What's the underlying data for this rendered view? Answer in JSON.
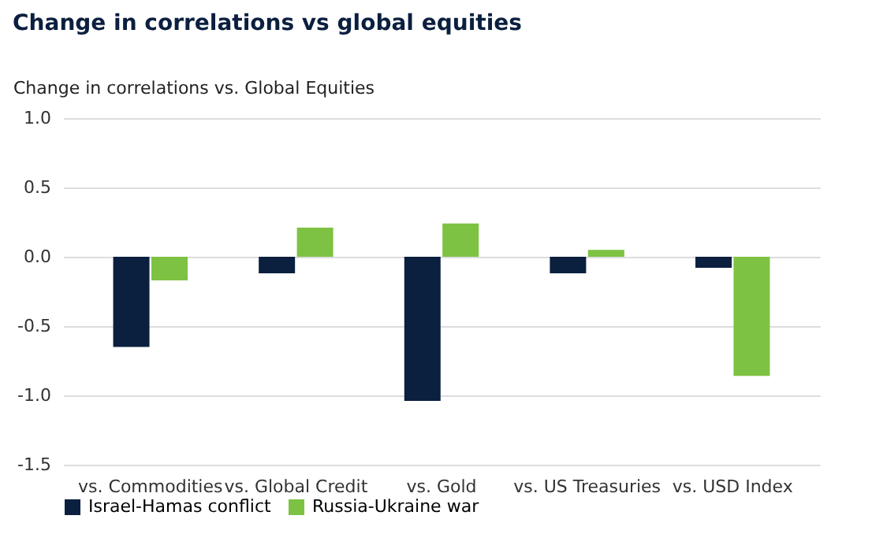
{
  "chart_data": {
    "type": "bar",
    "title": "Change in correlations vs global equities",
    "ylabel": "Change in correlations vs. Global Equities",
    "categories": [
      "vs. Commodities",
      "vs. Global Credit",
      "vs. Gold",
      "vs. US Treasuries",
      "vs. USD Index"
    ],
    "series": [
      {
        "name": "Israel-Hamas conflict",
        "color": "#0b1f3f",
        "values": [
          -0.65,
          -0.12,
          -1.04,
          -0.12,
          -0.08
        ]
      },
      {
        "name": "Russia-Ukraine war",
        "color": "#7dc242",
        "values": [
          -0.17,
          0.21,
          0.24,
          0.05,
          -0.86
        ]
      }
    ],
    "ylim": [
      -1.5,
      1.0
    ],
    "yticks": [
      {
        "value": -1.5,
        "label": "-1.5"
      },
      {
        "value": -1.0,
        "label": "-1.0"
      },
      {
        "value": -0.5,
        "label": "-0.5"
      },
      {
        "value": 0,
        "label": "0.0"
      },
      {
        "value": 0.5,
        "label": "0.5"
      },
      {
        "value": 1.0,
        "label": "1.0"
      }
    ],
    "grid": "y",
    "legend": "bottom"
  }
}
